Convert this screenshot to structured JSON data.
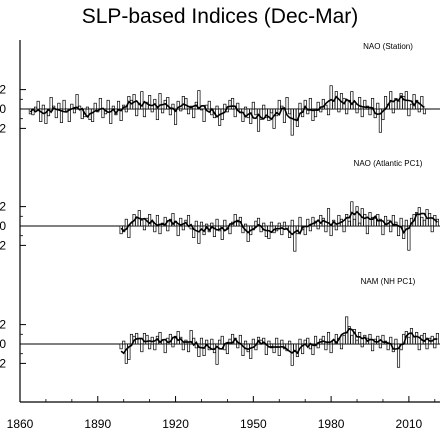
{
  "chart_data": {
    "type": "bar",
    "title": "SLP-based Indices (Dec-Mar)",
    "xlim": [
      1860,
      2022
    ],
    "xticks": [
      1860,
      1890,
      1920,
      1950,
      1980,
      2010
    ],
    "grid": false,
    "legend": "none",
    "panels": [
      {
        "label": "NAO (Station)",
        "ylim": [
          -3,
          3
        ],
        "ytick_labels": [
          "2",
          "0",
          "2"
        ],
        "start_year": 1864,
        "values": [
          -0.5,
          -0.6,
          0.2,
          0.8,
          -1.3,
          0.4,
          -1.5,
          -0.7,
          1.2,
          0.3,
          -0.9,
          0.6,
          -1.4,
          0.9,
          -0.2,
          -1.3,
          0.5,
          -0.4,
          1.5,
          0.3,
          -1.0,
          -0.8,
          0.2,
          -1.1,
          -1.3,
          0.6,
          -0.3,
          1.1,
          -0.9,
          -0.5,
          0.9,
          -1.5,
          0.3,
          -0.6,
          0.8,
          -1.2,
          0.4,
          -0.3,
          1.3,
          0.9,
          1.5,
          -0.7,
          0.6,
          1.8,
          -0.8,
          0.7,
          1.4,
          -0.3,
          1.0,
          -1.1,
          1.6,
          -0.4,
          0.9,
          1.2,
          -0.6,
          0.5,
          -1.6,
          0.8,
          -0.2,
          1.3,
          1.1,
          -0.5,
          0.3,
          -0.9,
          0.7,
          1.9,
          -0.1,
          -1.3,
          0.4,
          0.8,
          -0.6,
          -0.9,
          0.3,
          -1.7,
          -1.1,
          0.5,
          -0.3,
          0.9,
          1.1,
          -0.8,
          0.6,
          -0.4,
          -1.3,
          0.2,
          -0.9,
          -1.5,
          0.7,
          -0.6,
          -2.3,
          -1.1,
          0.4,
          -0.9,
          -1.2,
          -0.4,
          -2.0,
          -0.7,
          0.9,
          0.3,
          -1.4,
          1.2,
          -0.5,
          -2.7,
          -1.1,
          -1.8,
          0.6,
          -0.8,
          0.9,
          -0.5,
          1.1,
          -1.2,
          -0.8,
          0.7,
          -0.3,
          1.0,
          0.4,
          -0.6,
          2.4,
          0.8,
          1.8,
          -0.3,
          1.6,
          1.1,
          -0.5,
          0.9,
          1.8,
          0.7,
          -0.4,
          1.2,
          -0.8,
          0.9,
          0.3,
          -0.6,
          1.1,
          -0.9,
          0.6,
          -2.4,
          -1.1,
          1.3,
          0.5,
          1.8,
          -0.4,
          1.1,
          0.8,
          1.6,
          1.3,
          1.8,
          -0.7,
          0.5,
          1.5,
          0.9,
          -0.3,
          1.3,
          -0.5
        ]
      },
      {
        "label": "NAO (Atlantic PC1)",
        "ylim": [
          -3,
          3
        ],
        "ytick_labels": [
          "2",
          "0",
          "2"
        ],
        "start_year": 1899,
        "values": [
          -0.8,
          -0.6,
          0.7,
          -1.2,
          0.3,
          1.2,
          0.9,
          1.6,
          0.6,
          -0.4,
          0.8,
          1.2,
          0.4,
          -0.6,
          1.1,
          -0.8,
          0.3,
          0.9,
          -0.5,
          0.7,
          1.3,
          0.5,
          -1.0,
          0.8,
          -0.4,
          0.6,
          1.1,
          -0.3,
          -1.2,
          0.5,
          -1.8,
          0.4,
          -0.9,
          0.2,
          -0.6,
          0.3,
          -1.1,
          0.7,
          -0.5,
          -1.4,
          0.6,
          -0.3,
          -0.8,
          0.4,
          1.2,
          0.6,
          0.9,
          -0.7,
          0.2,
          -1.6,
          -0.9,
          -0.4,
          0.5,
          0.8,
          -0.6,
          0.3,
          -1.1,
          -1.3,
          0.4,
          -0.7,
          -0.5,
          0.3,
          -0.9,
          0.4,
          -0.3,
          -1.2,
          0.6,
          -2.6,
          -0.8,
          0.9,
          -0.4,
          -0.9,
          0.7,
          -0.5,
          0.9,
          0.5,
          -0.3,
          1.1,
          0.8,
          -0.6,
          1.8,
          -1.0,
          0.6,
          -0.4,
          1.1,
          0.7,
          -0.6,
          1.2,
          0.5,
          2.5,
          0.7,
          2.0,
          0.3,
          1.8,
          1.2,
          -0.8,
          1.4,
          0.9,
          0.8,
          1.2,
          0.7,
          -0.9,
          1.0,
          0.6,
          -0.6,
          1.1,
          0.4,
          -1.0,
          0.8,
          -1.3,
          0.6,
          -2.5,
          0.8,
          1.2,
          1.4,
          1.9,
          0.9,
          0.6,
          1.7,
          1.3,
          -0.6,
          1.1,
          0.7
        ]
      },
      {
        "label": "NAM (NH PC1)",
        "ylim": [
          -3,
          3
        ],
        "ytick_labels": [
          "2",
          "0",
          "2"
        ],
        "start_year": 1899,
        "values": [
          -0.5,
          0.3,
          -2.0,
          -1.6,
          1.0,
          0.8,
          1.1,
          0.6,
          -0.8,
          1.1,
          0.9,
          -0.5,
          0.7,
          -0.6,
          0.8,
          1.2,
          0.4,
          -0.9,
          0.6,
          1.0,
          -0.3,
          0.8,
          1.3,
          0.7,
          -0.6,
          0.4,
          -0.8,
          1.4,
          0.6,
          -0.4,
          -1.3,
          0.6,
          -1.2,
          0.4,
          -0.6,
          0.5,
          -0.9,
          -2.1,
          0.4,
          0.8,
          -0.6,
          -1.0,
          0.5,
          1.0,
          0.6,
          -0.4,
          0.9,
          -1.2,
          0.3,
          -0.8,
          -1.5,
          0.5,
          -0.6,
          0.7,
          0.4,
          0.6,
          -1.1,
          0.3,
          -0.4,
          -0.9,
          0.6,
          -1.2,
          0.4,
          -0.5,
          -0.7,
          0.3,
          -2.2,
          -0.7,
          -1.3,
          0.5,
          -1.0,
          0.4,
          0.6,
          -0.5,
          -1.1,
          0.8,
          -0.4,
          0.5,
          0.8,
          -0.6,
          1.2,
          -0.9,
          0.4,
          1.0,
          0.6,
          -0.5,
          0.9,
          2.8,
          1.8,
          0.9,
          1.5,
          0.4,
          1.2,
          -0.3,
          0.9,
          0.6,
          1.0,
          -0.7,
          0.5,
          0.8,
          -0.4,
          0.9,
          0.3,
          -0.6,
          0.7,
          -0.8,
          0.5,
          -2.4,
          -0.6,
          1.0,
          1.3,
          0.7,
          1.6,
          0.8,
          1.2,
          -0.6,
          0.9,
          1.1,
          -0.5,
          0.6,
          0.8,
          -0.4,
          1.1
        ]
      }
    ]
  }
}
